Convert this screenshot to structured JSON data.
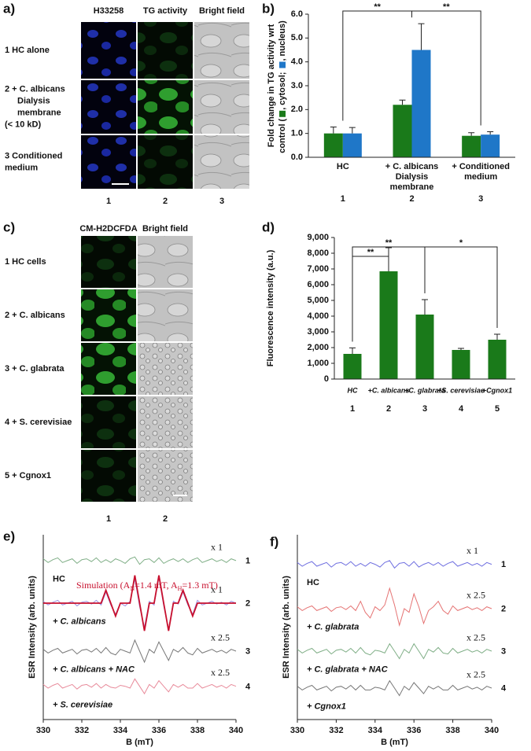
{
  "image_panels": [
    {
      "panel_label": "a)",
      "column_headers": [
        "H33258",
        "TG activity",
        "Bright field"
      ],
      "row_labels": [
        [
          "1 HC alone"
        ],
        [
          "2 + C. albicans",
          "Dialysis",
          "membrane",
          "(< 10 kD)"
        ],
        [
          "3    Conditioned",
          "medium"
        ]
      ],
      "column_numbers": [
        "1",
        "2",
        "3"
      ]
    },
    {
      "panel_label": "c)",
      "column_headers": [
        "CM-H2DCFDA",
        "Bright field"
      ],
      "row_labels": [
        [
          "1  HC cells"
        ],
        [
          "2  + C. albicans"
        ],
        [
          "3  + C. glabrata"
        ],
        [
          "4  + S. cerevisiae"
        ],
        [
          "5  + Cgnox1"
        ]
      ],
      "column_numbers": [
        "1",
        "2"
      ]
    }
  ],
  "chart_data": [
    {
      "type": "bar",
      "panel_label": "b)",
      "ylabel": [
        "Fold change in TG activity wrt",
        "control ("
      ],
      "legend_marker_suffix": ",",
      "legend_separator": ";",
      "legend_end": ")",
      "categories": [
        [
          "HC"
        ],
        [
          "+ C. albicans",
          "Dialysis",
          "membrane"
        ],
        [
          "+ Conditioned",
          "medium"
        ]
      ],
      "category_numbers": [
        "1",
        "2",
        "3"
      ],
      "series": [
        {
          "name": "cytosol",
          "color": "#1a7a1a",
          "values": [
            1.0,
            2.2,
            0.9
          ],
          "errors": [
            0.27,
            0.2,
            0.13
          ]
        },
        {
          "name": "nucleus",
          "color": "#1f77c8",
          "values": [
            1.0,
            4.5,
            0.95
          ],
          "errors": [
            0.25,
            1.1,
            0.12
          ]
        }
      ],
      "ylim": [
        0,
        6
      ],
      "yticks": [
        {
          "value": 0,
          "label": "0.0"
        },
        {
          "value": 1,
          "label": "1.0"
        },
        {
          "value": 2,
          "label": "2.0"
        },
        {
          "value": 3,
          "label": "3.0"
        },
        {
          "value": 4,
          "label": "4.0"
        },
        {
          "value": 5,
          "label": "5.0"
        },
        {
          "value": 6,
          "label": "6.0"
        }
      ],
      "significance": [
        {
          "label": "**",
          "between": [
            0,
            1
          ]
        },
        {
          "label": "**",
          "between": [
            1,
            2
          ]
        }
      ]
    },
    {
      "type": "bar",
      "panel_label": "d)",
      "ylabel": "Fluorescence intensity (a.u.)",
      "categories": [
        "HC",
        "+C. albicans",
        "+C. glabrata",
        "+S. cerevisiae",
        "+Cgnox1"
      ],
      "category_numbers": [
        "1",
        "2",
        "3",
        "4",
        "5"
      ],
      "series": [
        {
          "color": "#1a7a1a",
          "values": [
            1600,
            6850,
            4100,
            1850,
            2500
          ],
          "errors": [
            380,
            1500,
            950,
            100,
            350
          ]
        }
      ],
      "ylim": [
        0,
        9000
      ],
      "yticks": [
        0,
        {
          "value": 1000,
          "label": "1,000"
        },
        {
          "value": 2000,
          "label": "2,000"
        },
        {
          "value": 3000,
          "label": "3,000"
        },
        {
          "value": 4000,
          "label": "4,000"
        },
        {
          "value": 5000,
          "label": "5,000"
        },
        {
          "value": 6000,
          "label": "6,000"
        },
        {
          "value": 7000,
          "label": "7,000"
        },
        {
          "value": 8000,
          "label": "8,000"
        },
        {
          "value": 9000,
          "label": "9,000"
        }
      ],
      "significance": [
        {
          "label": "**",
          "between": [
            0,
            1
          ]
        },
        {
          "label": "**",
          "between": [
            0,
            2
          ]
        },
        {
          "label": "*",
          "between": [
            2,
            4
          ]
        }
      ]
    },
    {
      "type": "line",
      "panel_label": "e)",
      "xlabel": "B (mT)",
      "ylabel": "ESR Intensity (arb. units)",
      "xlim": [
        330,
        340
      ],
      "xticks": [
        330,
        332,
        334,
        336,
        338,
        340
      ],
      "ylim": [
        0,
        10
      ],
      "x": [
        330,
        330.25,
        330.5,
        330.75,
        331,
        331.25,
        331.5,
        331.75,
        332,
        332.25,
        332.5,
        332.75,
        333,
        333.25,
        333.5,
        333.75,
        334,
        334.25,
        334.5,
        334.75,
        335,
        335.25,
        335.5,
        335.75,
        336,
        336.25,
        336.5,
        336.75,
        337,
        337.25,
        337.5,
        337.75,
        338,
        338.25,
        338.5,
        338.75,
        339,
        339.25,
        339.5,
        339.75,
        340
      ],
      "series": [
        {
          "name": "HC",
          "color": "#7fae86",
          "scale": "x 1",
          "number": "1",
          "values": [
            8.7,
            8.5,
            8.65,
            8.75,
            8.5,
            8.6,
            8.7,
            8.45,
            8.65,
            8.7,
            8.55,
            8.75,
            8.5,
            8.65,
            8.5,
            8.7,
            8.6,
            8.45,
            8.7,
            8.8,
            8.4,
            8.65,
            8.7,
            8.5,
            8.75,
            8.45,
            8.6,
            8.7,
            8.55,
            8.7,
            8.5,
            8.65,
            8.75,
            8.5,
            8.6,
            8.7,
            8.55,
            8.65,
            8.5,
            8.7,
            8.6
          ]
        },
        {
          "name": "+ C. albicans",
          "color": "#9a8fe0",
          "scale": "x 1",
          "number": "2",
          "values": [
            6.4,
            6.2,
            6.35,
            6.45,
            6.2,
            6.3,
            6.4,
            6.15,
            6.35,
            6.4,
            6.25,
            6.45,
            6.2,
            6.9,
            6.2,
            5.7,
            6.3,
            6.15,
            6.4,
            7.6,
            6.1,
            5.0,
            6.4,
            6.2,
            7.7,
            6.15,
            4.9,
            6.4,
            6.25,
            6.9,
            6.2,
            5.7,
            6.45,
            6.2,
            6.3,
            6.4,
            6.25,
            6.35,
            6.2,
            6.4,
            6.3
          ]
        },
        {
          "name": "+ C. albicans + NAC",
          "color": "#777777",
          "scale": "x 2.5",
          "number": "3",
          "values": [
            3.8,
            3.6,
            3.75,
            3.85,
            3.6,
            3.7,
            3.8,
            3.55,
            3.75,
            3.8,
            3.65,
            3.85,
            3.6,
            3.9,
            3.6,
            3.5,
            3.8,
            3.7,
            3.6,
            4.3,
            3.7,
            3.1,
            3.8,
            3.6,
            4.2,
            3.7,
            3.2,
            3.8,
            3.65,
            3.9,
            3.6,
            3.5,
            3.85,
            3.6,
            3.7,
            3.8,
            3.65,
            3.75,
            3.6,
            3.8,
            3.7
          ]
        },
        {
          "name": "+ S. cerevisiae",
          "color": "#e88a9a",
          "scale": "x 2.5",
          "number": "4",
          "values": [
            1.9,
            1.7,
            1.85,
            1.95,
            1.7,
            1.8,
            1.9,
            1.65,
            1.85,
            1.9,
            1.75,
            1.95,
            1.7,
            1.9,
            1.75,
            1.7,
            1.85,
            1.8,
            1.7,
            2.2,
            1.8,
            1.4,
            1.9,
            1.7,
            2.1,
            1.8,
            1.5,
            1.9,
            1.75,
            1.9,
            1.7,
            1.7,
            1.95,
            1.7,
            1.8,
            1.9,
            1.75,
            1.85,
            1.7,
            1.9,
            1.8
          ]
        }
      ],
      "simulation": {
        "color": "#c8102e",
        "label": [
          {
            "text": "Simulation (A"
          },
          {
            "text": "N",
            "sub": true
          },
          {
            "text": "=1.4 mT, A"
          },
          {
            "text": "H",
            "sub": true
          },
          {
            "text": "=1.3 mT)"
          }
        ],
        "values": [
          6.3,
          6.3,
          6.3,
          6.3,
          6.3,
          6.3,
          6.3,
          6.3,
          6.3,
          6.3,
          6.3,
          6.3,
          6.3,
          7.0,
          6.3,
          5.6,
          6.3,
          6.3,
          6.3,
          7.8,
          6.3,
          4.8,
          6.3,
          6.3,
          7.8,
          6.3,
          4.8,
          6.3,
          6.3,
          7.0,
          6.3,
          5.6,
          6.3,
          6.3,
          6.3,
          6.3,
          6.3,
          6.3,
          6.3,
          6.3,
          6.3
        ]
      }
    },
    {
      "type": "line",
      "panel_label": "f)",
      "xlabel": "B (mT)",
      "ylabel": "ESR Intensity (arb. units)",
      "xlim": [
        330,
        340
      ],
      "xticks": [
        330,
        332,
        334,
        336,
        338,
        340
      ],
      "ylim": [
        0,
        10
      ],
      "x": [
        330,
        330.25,
        330.5,
        330.75,
        331,
        331.25,
        331.5,
        331.75,
        332,
        332.25,
        332.5,
        332.75,
        333,
        333.25,
        333.5,
        333.75,
        334,
        334.25,
        334.5,
        334.75,
        335,
        335.25,
        335.5,
        335.75,
        336,
        336.25,
        336.5,
        336.75,
        337,
        337.25,
        337.5,
        337.75,
        338,
        338.25,
        338.5,
        338.75,
        339,
        339.25,
        339.5,
        339.75,
        340
      ],
      "series": [
        {
          "name": "HC",
          "color": "#6f6fe0",
          "scale": "x 1",
          "number": "1",
          "values": [
            8.5,
            8.3,
            8.45,
            8.55,
            8.3,
            8.4,
            8.5,
            8.25,
            8.45,
            8.5,
            8.35,
            8.55,
            8.3,
            8.45,
            8.3,
            8.5,
            8.4,
            8.25,
            8.5,
            8.6,
            8.2,
            8.45,
            8.5,
            8.3,
            8.55,
            8.25,
            8.4,
            8.5,
            8.35,
            8.5,
            8.3,
            8.45,
            8.55,
            8.3,
            8.4,
            8.5,
            8.35,
            8.45,
            8.3,
            8.5,
            8.4
          ]
        },
        {
          "name": "+ C. glabrata",
          "color": "#e57373",
          "scale": "x 2.5",
          "number": "2",
          "values": [
            6.1,
            5.9,
            6.05,
            6.15,
            5.9,
            6.0,
            6.1,
            5.85,
            6.05,
            6.1,
            5.95,
            6.15,
            5.9,
            6.4,
            5.8,
            5.5,
            6.1,
            5.9,
            6.2,
            7.1,
            6.2,
            5.1,
            6.0,
            5.8,
            6.8,
            6.1,
            5.2,
            5.9,
            6.1,
            6.4,
            5.9,
            5.7,
            6.15,
            5.9,
            6.0,
            6.1,
            5.95,
            6.05,
            5.9,
            6.1,
            6.0
          ]
        },
        {
          "name": "+ C. glabrata + NAC",
          "color": "#7fae86",
          "scale": "x 2.5",
          "number": "3",
          "values": [
            3.8,
            3.6,
            3.75,
            3.85,
            3.6,
            3.7,
            3.8,
            3.55,
            3.75,
            3.8,
            3.65,
            3.85,
            3.6,
            3.9,
            3.6,
            3.5,
            3.75,
            3.7,
            3.6,
            4.1,
            3.7,
            3.3,
            3.8,
            3.6,
            4.1,
            3.7,
            3.3,
            3.8,
            3.65,
            3.9,
            3.6,
            3.55,
            3.85,
            3.6,
            3.7,
            3.8,
            3.65,
            3.75,
            3.6,
            3.8,
            3.7
          ]
        },
        {
          "name": "+ Cgnox1",
          "color": "#777777",
          "scale": "x 2.5",
          "number": "4",
          "values": [
            1.8,
            1.6,
            1.75,
            1.85,
            1.6,
            1.7,
            1.8,
            1.55,
            1.75,
            1.8,
            1.65,
            1.85,
            1.6,
            1.85,
            1.6,
            1.6,
            1.75,
            1.7,
            1.6,
            2.1,
            1.7,
            1.3,
            1.8,
            1.6,
            2.0,
            1.7,
            1.4,
            1.8,
            1.65,
            1.8,
            1.6,
            1.6,
            1.85,
            1.6,
            1.7,
            1.8,
            1.65,
            1.75,
            1.6,
            1.8,
            1.7
          ]
        }
      ]
    }
  ]
}
